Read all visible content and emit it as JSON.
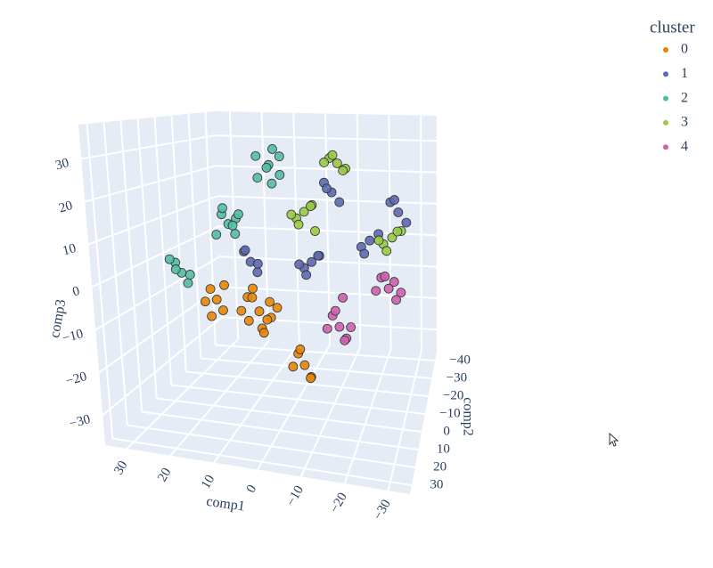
{
  "chart_data": {
    "type": "scatter3d",
    "legend_title": "cluster",
    "xaxis_title": "comp1",
    "yaxis_title": "comp2",
    "zaxis_title": "comp3",
    "xlim": [
      -35,
      35
    ],
    "ylim": [
      -45,
      35
    ],
    "zlim": [
      -37,
      38
    ],
    "xticks": [
      {
        "value": -30,
        "label": "−30"
      },
      {
        "value": -20,
        "label": "−20"
      },
      {
        "value": -10,
        "label": "−10"
      },
      0,
      10,
      20,
      30
    ],
    "yticks": [
      {
        "value": -40,
        "label": "−40"
      },
      {
        "value": -30,
        "label": "−30"
      },
      {
        "value": -20,
        "label": "−20"
      },
      {
        "value": -10,
        "label": "−10"
      },
      0,
      10,
      20,
      30
    ],
    "zticks": [
      {
        "value": -30,
        "label": "−30"
      },
      {
        "value": -20,
        "label": "−20"
      },
      {
        "value": -10,
        "label": "−10"
      },
      0,
      10,
      20,
      30
    ],
    "series": [
      {
        "name": "0",
        "color": "#E58606",
        "x": [
          5,
          3,
          7,
          2,
          8,
          4,
          6,
          1,
          9,
          5,
          3,
          7,
          -6,
          -4,
          -8,
          -5,
          -7,
          -3,
          15,
          17,
          13,
          16,
          14,
          18
        ],
        "y": [
          11,
          9,
          13,
          12,
          10,
          7,
          14,
          10,
          12,
          8,
          15,
          9,
          11,
          9,
          13,
          12,
          8,
          10,
          11,
          9,
          13,
          12,
          8,
          10
        ],
        "z": [
          -8,
          -6,
          -10,
          -9,
          -5,
          -11,
          -4,
          -7,
          -8,
          -13,
          -12,
          -3,
          -20,
          -18,
          -22,
          -16,
          -24,
          -21,
          -6,
          -4,
          -8,
          -10,
          -3,
          -7
        ]
      },
      {
        "name": "1",
        "color": "#5D69B1",
        "x": [
          7,
          9,
          5,
          8,
          6,
          -7,
          -5,
          -9,
          -6,
          -8,
          -4,
          -20,
          -18,
          -22,
          -19,
          -26,
          -24,
          -28,
          -25,
          -11,
          -9,
          -13,
          -10
        ],
        "y": [
          11,
          9,
          13,
          12,
          8,
          11,
          9,
          13,
          12,
          8,
          10,
          11,
          9,
          13,
          12,
          11,
          9,
          13,
          12,
          11,
          9,
          13,
          12
        ],
        "z": [
          4,
          6,
          2,
          7,
          3,
          5,
          3,
          7,
          2,
          6,
          4,
          11,
          9,
          13,
          8,
          18,
          20,
          16,
          21,
          22,
          24,
          20,
          23
        ]
      },
      {
        "name": "2",
        "color": "#52BCA3",
        "x": [
          3,
          1,
          5,
          2,
          4,
          6,
          0,
          3,
          12,
          14,
          10,
          13,
          11,
          15,
          9,
          12,
          23,
          25,
          21,
          24,
          22,
          26
        ],
        "y": [
          11,
          9,
          13,
          12,
          8,
          10,
          14,
          7,
          11,
          9,
          13,
          12,
          8,
          10,
          14,
          7,
          11,
          9,
          13,
          12,
          8,
          10
        ],
        "z": [
          28,
          30,
          25,
          32,
          27,
          30,
          26,
          23,
          13,
          15,
          11,
          17,
          14,
          10,
          16,
          12,
          0,
          2,
          -2,
          1,
          -1,
          3
        ]
      },
      {
        "name": "3",
        "color": "#99C945",
        "x": [
          -12,
          -10,
          -14,
          -11,
          -13,
          -9,
          -5,
          -3,
          -7,
          -4,
          -6,
          -2,
          -8,
          -25,
          -23,
          -27,
          -24,
          -26,
          -22
        ],
        "y": [
          11,
          9,
          13,
          12,
          8,
          10,
          11,
          9,
          13,
          12,
          8,
          10,
          14,
          11,
          9,
          13,
          12,
          8,
          10
        ],
        "z": [
          29,
          30,
          28,
          31,
          27,
          29,
          17,
          15,
          19,
          14,
          18,
          16,
          13,
          12,
          10,
          14,
          9,
          13,
          11
        ]
      },
      {
        "name": "4",
        "color": "#CC61B0",
        "x": [
          -14,
          -12,
          -16,
          -13,
          -15,
          -11,
          -17,
          -14,
          -25,
          -23,
          -27,
          -24,
          -26,
          -22,
          -28
        ],
        "y": [
          11,
          9,
          13,
          12,
          8,
          10,
          14,
          7,
          11,
          9,
          13,
          12,
          8,
          10,
          14
        ],
        "z": [
          -10,
          -8,
          -12,
          -6,
          -14,
          -11,
          -9,
          -4,
          0,
          2,
          -2,
          3,
          1,
          -1,
          0
        ]
      }
    ]
  }
}
